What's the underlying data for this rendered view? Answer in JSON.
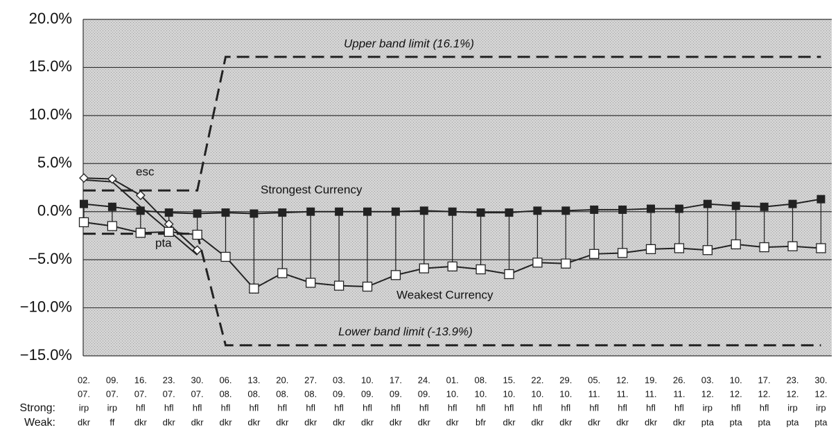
{
  "chart_data": {
    "type": "line",
    "categories": [
      [
        "02.",
        "07."
      ],
      [
        "09.",
        "07."
      ],
      [
        "16.",
        "07."
      ],
      [
        "23.",
        "07."
      ],
      [
        "30.",
        "07."
      ],
      [
        "06.",
        "08."
      ],
      [
        "13.",
        "08."
      ],
      [
        "20.",
        "08."
      ],
      [
        "27.",
        "08."
      ],
      [
        "03.",
        "09."
      ],
      [
        "10.",
        "09."
      ],
      [
        "17.",
        "09."
      ],
      [
        "24.",
        "09."
      ],
      [
        "01.",
        "10."
      ],
      [
        "08.",
        "10."
      ],
      [
        "15.",
        "10."
      ],
      [
        "22.",
        "10."
      ],
      [
        "29.",
        "10."
      ],
      [
        "05.",
        "11."
      ],
      [
        "12.",
        "11."
      ],
      [
        "19.",
        "11."
      ],
      [
        "26.",
        "11."
      ],
      [
        "03.",
        "12."
      ],
      [
        "10.",
        "12."
      ],
      [
        "17.",
        "12."
      ],
      [
        "23.",
        "12."
      ],
      [
        "30.",
        "12."
      ]
    ],
    "strong_label": "Strong:",
    "strong": [
      "irp",
      "irp",
      "hfl",
      "hfl",
      "hfl",
      "hfl",
      "hfl",
      "hfl",
      "hfl",
      "hfl",
      "hfl",
      "hfl",
      "hfl",
      "hfl",
      "hfl",
      "hfl",
      "hfl",
      "hfl",
      "hfl",
      "hfl",
      "hfl",
      "hfl",
      "irp",
      "hfl",
      "hfl",
      "irp",
      "irp"
    ],
    "weak_label": "Weak:",
    "weak": [
      "dkr",
      "ff",
      "dkr",
      "dkr",
      "dkr",
      "dkr",
      "dkr",
      "dkr",
      "dkr",
      "dkr",
      "dkr",
      "dkr",
      "dkr",
      "dkr",
      "bfr",
      "dkr",
      "dkr",
      "dkr",
      "dkr",
      "dkr",
      "dkr",
      "dkr",
      "pta",
      "pta",
      "pta",
      "pta",
      "pta"
    ],
    "series": [
      {
        "name": "Strongest Currency",
        "color": "#222",
        "marker": "filled-square",
        "values": [
          0.8,
          0.5,
          0.1,
          -0.1,
          -0.2,
          -0.1,
          -0.2,
          -0.1,
          0.0,
          0.0,
          0.0,
          0.0,
          0.1,
          0.0,
          -0.1,
          -0.1,
          0.1,
          0.1,
          0.2,
          0.2,
          0.3,
          0.3,
          0.8,
          0.6,
          0.5,
          0.8,
          1.3
        ]
      },
      {
        "name": "Weakest Currency",
        "color": "#222",
        "marker": "open-square",
        "values": [
          -1.1,
          -1.5,
          -2.2,
          -2.1,
          -2.4,
          -4.7,
          -8.0,
          -6.4,
          -7.4,
          -7.7,
          -7.8,
          -6.6,
          -5.9,
          -5.7,
          -6.0,
          -6.5,
          -5.3,
          -5.4,
          -4.4,
          -4.3,
          -3.9,
          -3.8,
          -4.0,
          -3.4,
          -3.7,
          -3.6,
          -3.8
        ]
      },
      {
        "name": "esc",
        "color": "#222",
        "marker": "diamond",
        "values": [
          3.5,
          3.4,
          1.7,
          -1.3,
          -4.0,
          null,
          null,
          null,
          null,
          null,
          null,
          null,
          null,
          null,
          null,
          null,
          null,
          null,
          null,
          null,
          null,
          null,
          null,
          null,
          null,
          null,
          null
        ]
      },
      {
        "name": "pta",
        "color": "#222",
        "marker": "none",
        "values": [
          3.3,
          3.1,
          0.5,
          -2.0,
          -4.5,
          null,
          null,
          null,
          null,
          null,
          null,
          null,
          null,
          null,
          null,
          null,
          null,
          null,
          null,
          null,
          null,
          null,
          null,
          null,
          null,
          null,
          null
        ]
      },
      {
        "name": "Upper band limit (16.1%)",
        "color": "#222",
        "dashed": true,
        "values": [
          2.2,
          2.2,
          2.2,
          2.2,
          2.2,
          16.1,
          16.1,
          16.1,
          16.1,
          16.1,
          16.1,
          16.1,
          16.1,
          16.1,
          16.1,
          16.1,
          16.1,
          16.1,
          16.1,
          16.1,
          16.1,
          16.1,
          16.1,
          16.1,
          16.1,
          16.1,
          16.1
        ]
      },
      {
        "name": "Lower band limit (-13.9%)",
        "color": "#222",
        "dashed": true,
        "values": [
          -2.3,
          -2.3,
          -2.3,
          -2.3,
          -2.3,
          -13.9,
          -13.9,
          -13.9,
          -13.9,
          -13.9,
          -13.9,
          -13.9,
          -13.9,
          -13.9,
          -13.9,
          -13.9,
          -13.9,
          -13.9,
          -13.9,
          -13.9,
          -13.9,
          -13.9,
          -13.9,
          -13.9,
          -13.9,
          -13.9,
          -13.9
        ]
      }
    ],
    "ylim": [
      -15,
      20
    ],
    "yticks": [
      {
        "value": -15,
        "label": "−15.0%"
      },
      {
        "value": -10,
        "label": "−10.0%"
      },
      {
        "value": -5,
        "label": "−5.0%"
      },
      {
        "value": 0,
        "label": "0.0%"
      },
      {
        "value": 5,
        "label": "5.0%"
      },
      {
        "value": 10,
        "label": "10.0%"
      },
      {
        "value": 15,
        "label": "15.0%"
      },
      {
        "value": 20,
        "label": "20.0%"
      }
    ],
    "grid": true
  }
}
